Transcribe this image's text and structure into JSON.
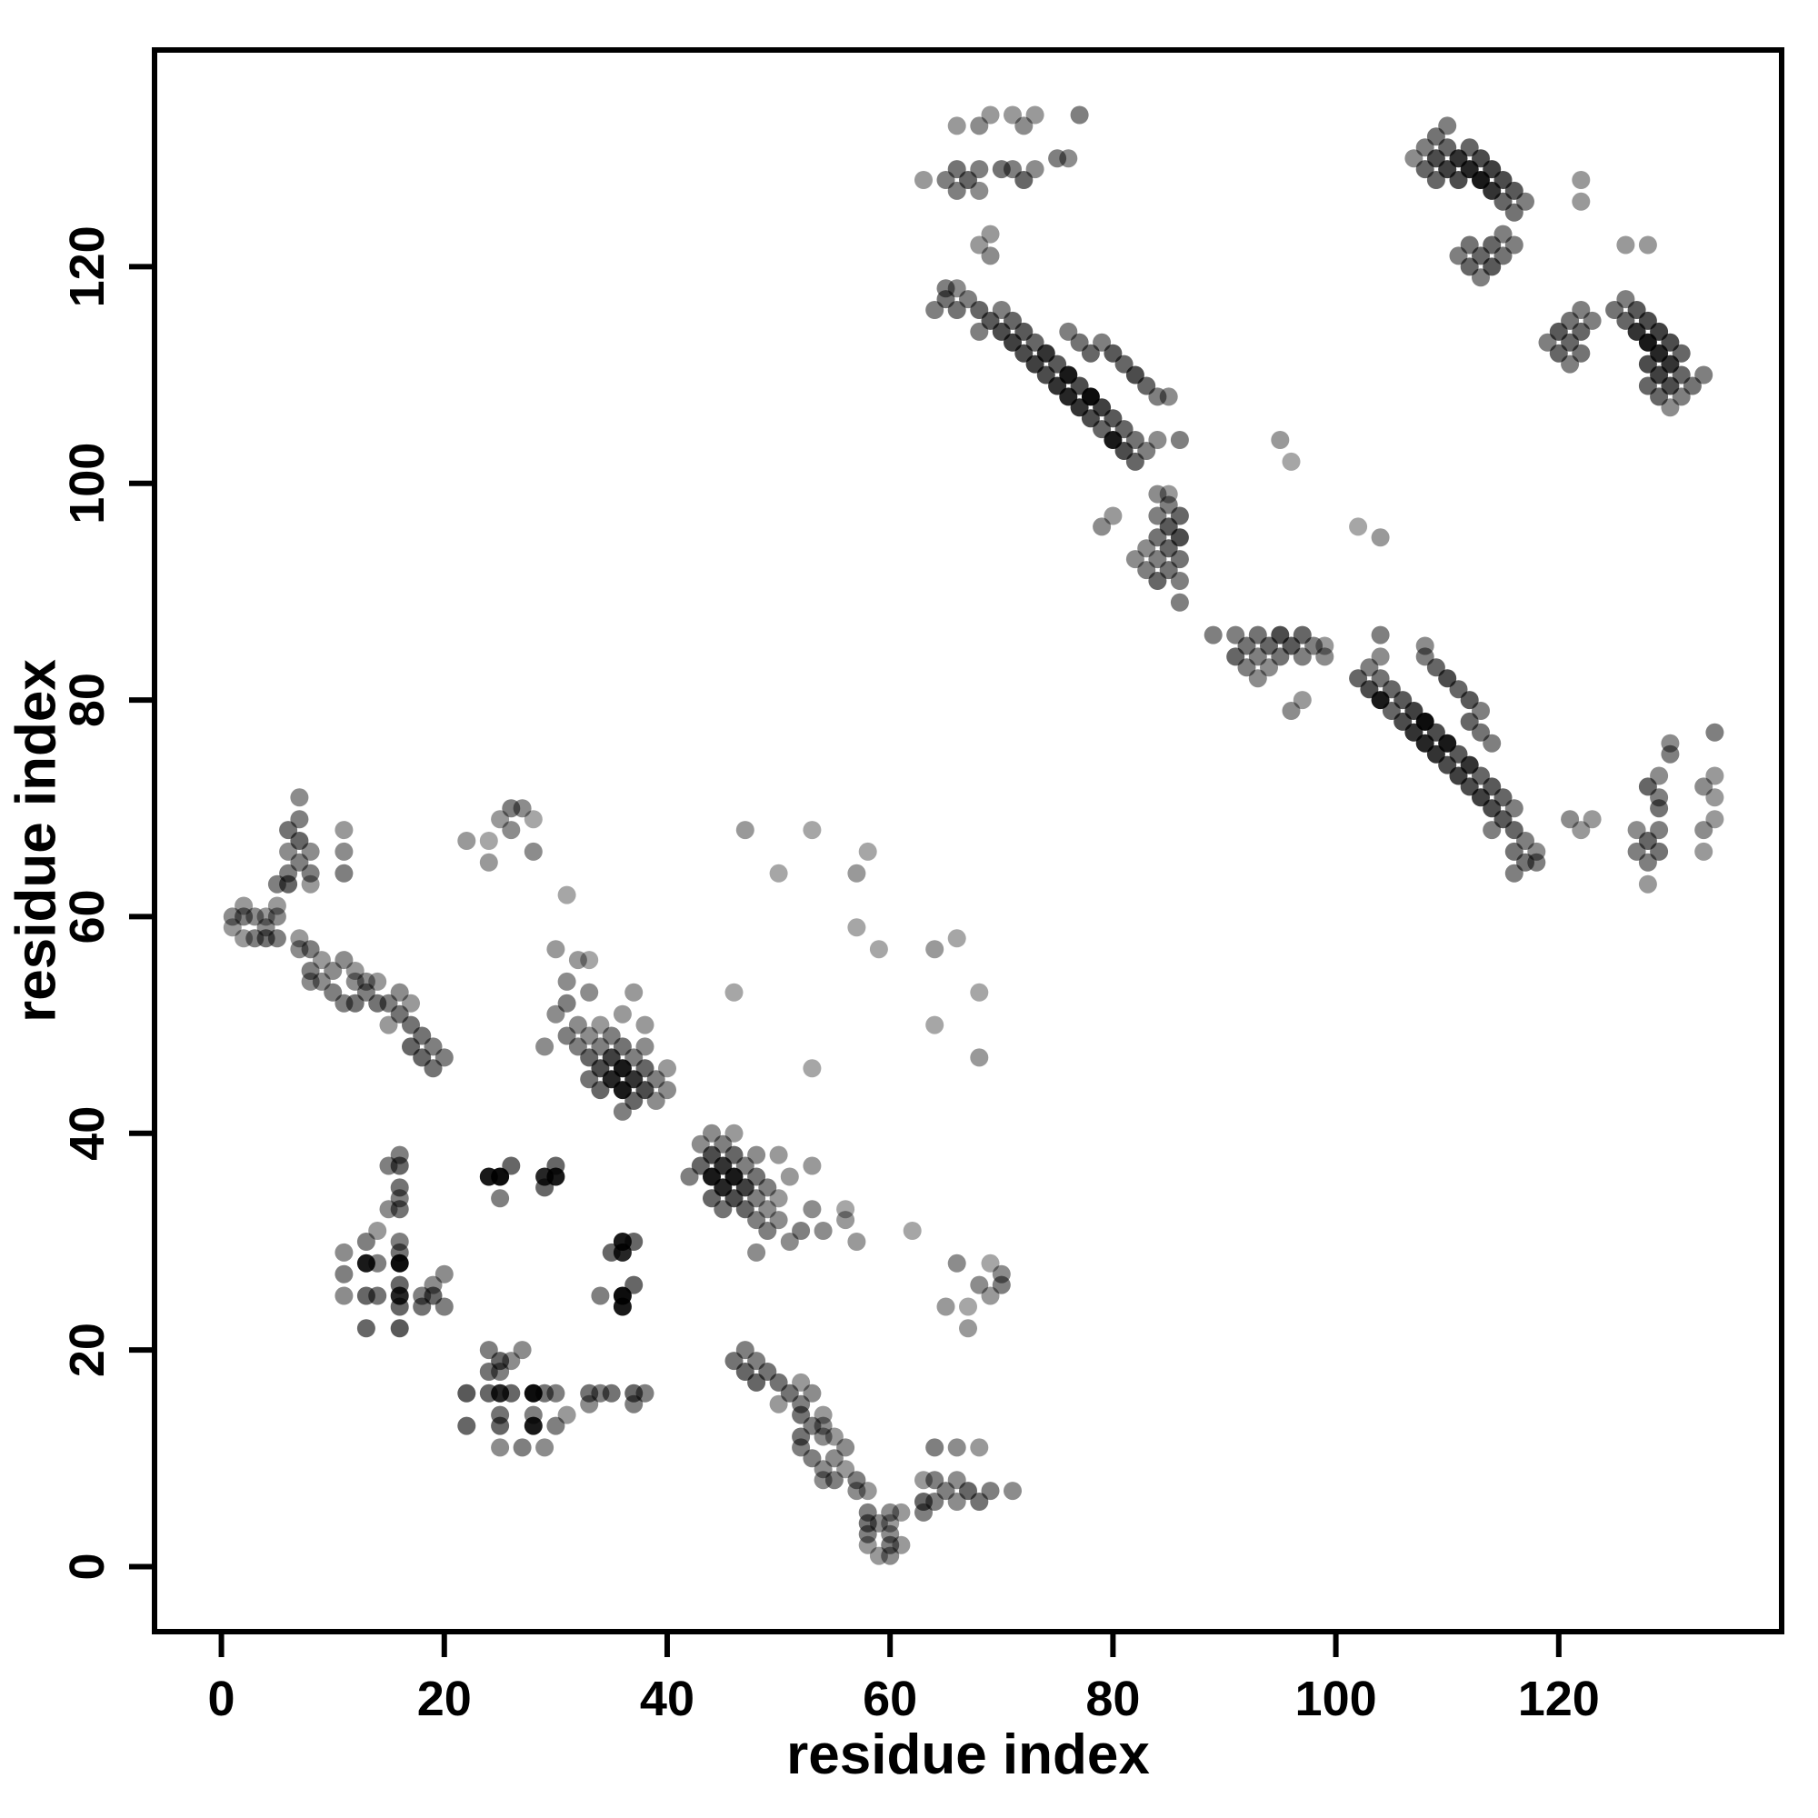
{
  "figure": {
    "background_color": "#ffffff",
    "border_color": "#000000",
    "description": "Protein residue-residue contact map scatter plot, grayscale dots"
  },
  "chart_data": {
    "type": "scatter",
    "title": "",
    "xlabel": "residue index",
    "ylabel": "residue index",
    "xlim": [
      -6,
      140
    ],
    "ylim": [
      -6,
      140
    ],
    "xticks": [
      0,
      20,
      40,
      60,
      80,
      100,
      120
    ],
    "yticks": [
      0,
      20,
      40,
      60,
      80,
      100,
      120
    ],
    "grid": false,
    "legend": null,
    "marker": {
      "shape": "circle",
      "radius_px": 10,
      "color": "#000000",
      "alpha_mode": "per-point"
    },
    "symmetric": true,
    "points_format": "[residue_i, residue_j, darkness 0-1]; map is symmetric so each pair is also drawn mirrored (j,i)",
    "points": [
      [
        1,
        59,
        0.4
      ],
      [
        1,
        60,
        0.45
      ],
      [
        2,
        58,
        0.4
      ],
      [
        2,
        60,
        0.5
      ],
      [
        2,
        61,
        0.4
      ],
      [
        3,
        58,
        0.5
      ],
      [
        3,
        60,
        0.45
      ],
      [
        4,
        58,
        0.55
      ],
      [
        4,
        59,
        0.45
      ],
      [
        4,
        60,
        0.4
      ],
      [
        5,
        58,
        0.5
      ],
      [
        5,
        60,
        0.45
      ],
      [
        5,
        61,
        0.4
      ],
      [
        5,
        63,
        0.5
      ],
      [
        6,
        63,
        0.6
      ],
      [
        6,
        64,
        0.5
      ],
      [
        6,
        66,
        0.45
      ],
      [
        6,
        68,
        0.55
      ],
      [
        7,
        65,
        0.5
      ],
      [
        7,
        67,
        0.6
      ],
      [
        7,
        69,
        0.5
      ],
      [
        7,
        71,
        0.45
      ],
      [
        8,
        63,
        0.4
      ],
      [
        8,
        64,
        0.5
      ],
      [
        8,
        66,
        0.45
      ],
      [
        11,
        64,
        0.5
      ],
      [
        11,
        66,
        0.45
      ],
      [
        11,
        68,
        0.4
      ],
      [
        7,
        57,
        0.45
      ],
      [
        7,
        58,
        0.4
      ],
      [
        8,
        54,
        0.45
      ],
      [
        8,
        55,
        0.5
      ],
      [
        8,
        57,
        0.5
      ],
      [
        9,
        54,
        0.45
      ],
      [
        9,
        56,
        0.4
      ],
      [
        10,
        53,
        0.5
      ],
      [
        10,
        55,
        0.45
      ],
      [
        11,
        52,
        0.5
      ],
      [
        11,
        56,
        0.45
      ],
      [
        12,
        52,
        0.55
      ],
      [
        12,
        54,
        0.45
      ],
      [
        12,
        55,
        0.4
      ],
      [
        13,
        53,
        0.5
      ],
      [
        13,
        54,
        0.45
      ],
      [
        14,
        52,
        0.55
      ],
      [
        14,
        54,
        0.4
      ],
      [
        15,
        50,
        0.4
      ],
      [
        15,
        52,
        0.5
      ],
      [
        16,
        51,
        0.55
      ],
      [
        16,
        53,
        0.45
      ],
      [
        17,
        48,
        0.6
      ],
      [
        17,
        50,
        0.55
      ],
      [
        17,
        52,
        0.4
      ],
      [
        18,
        47,
        0.6
      ],
      [
        18,
        49,
        0.55
      ],
      [
        19,
        46,
        0.55
      ],
      [
        19,
        48,
        0.5
      ],
      [
        20,
        47,
        0.5
      ],
      [
        11,
        25,
        0.45
      ],
      [
        11,
        27,
        0.5
      ],
      [
        11,
        29,
        0.45
      ],
      [
        13,
        22,
        0.6
      ],
      [
        13,
        25,
        0.6
      ],
      [
        13,
        28,
        0.9
      ],
      [
        13,
        30,
        0.5
      ],
      [
        14,
        25,
        0.55
      ],
      [
        14,
        28,
        0.5
      ],
      [
        14,
        31,
        0.4
      ],
      [
        16,
        22,
        0.65
      ],
      [
        16,
        24,
        0.6
      ],
      [
        16,
        25,
        0.85
      ],
      [
        16,
        26,
        0.6
      ],
      [
        16,
        28,
        0.95
      ],
      [
        16,
        29,
        0.55
      ],
      [
        16,
        30,
        0.5
      ],
      [
        18,
        24,
        0.55
      ],
      [
        18,
        25,
        0.5
      ],
      [
        19,
        25,
        0.6
      ],
      [
        19,
        26,
        0.45
      ],
      [
        20,
        24,
        0.5
      ],
      [
        20,
        27,
        0.45
      ],
      [
        15,
        33,
        0.45
      ],
      [
        15,
        37,
        0.5
      ],
      [
        16,
        33,
        0.55
      ],
      [
        16,
        34,
        0.5
      ],
      [
        16,
        35,
        0.55
      ],
      [
        16,
        37,
        0.6
      ],
      [
        16,
        38,
        0.5
      ],
      [
        24,
        36,
        0.9
      ],
      [
        25,
        34,
        0.5
      ],
      [
        25,
        36,
        0.95
      ],
      [
        26,
        37,
        0.6
      ],
      [
        29,
        35,
        0.6
      ],
      [
        29,
        36,
        0.85
      ],
      [
        30,
        36,
        0.9
      ],
      [
        30,
        37,
        0.6
      ],
      [
        30,
        51,
        0.45
      ],
      [
        31,
        49,
        0.5
      ],
      [
        31,
        52,
        0.5
      ],
      [
        31,
        54,
        0.45
      ],
      [
        32,
        48,
        0.5
      ],
      [
        32,
        50,
        0.45
      ],
      [
        32,
        56,
        0.4
      ],
      [
        33,
        45,
        0.55
      ],
      [
        33,
        47,
        0.6
      ],
      [
        33,
        49,
        0.45
      ],
      [
        33,
        53,
        0.45
      ],
      [
        33,
        56,
        0.35
      ],
      [
        34,
        44,
        0.6
      ],
      [
        34,
        46,
        0.7
      ],
      [
        34,
        48,
        0.5
      ],
      [
        34,
        50,
        0.4
      ],
      [
        35,
        45,
        0.85
      ],
      [
        35,
        47,
        0.75
      ],
      [
        35,
        49,
        0.5
      ],
      [
        36,
        42,
        0.5
      ],
      [
        36,
        44,
        0.9
      ],
      [
        36,
        46,
        0.9
      ],
      [
        36,
        48,
        0.55
      ],
      [
        36,
        51,
        0.4
      ],
      [
        37,
        43,
        0.6
      ],
      [
        37,
        45,
        0.8
      ],
      [
        37,
        47,
        0.5
      ],
      [
        37,
        53,
        0.4
      ],
      [
        38,
        44,
        0.7
      ],
      [
        38,
        46,
        0.6
      ],
      [
        38,
        48,
        0.45
      ],
      [
        38,
        50,
        0.4
      ],
      [
        39,
        43,
        0.45
      ],
      [
        39,
        45,
        0.5
      ],
      [
        40,
        44,
        0.45
      ],
      [
        40,
        46,
        0.4
      ],
      [
        22,
        67,
        0.4
      ],
      [
        24,
        65,
        0.4
      ],
      [
        24,
        67,
        0.35
      ],
      [
        25,
        69,
        0.4
      ],
      [
        26,
        68,
        0.45
      ],
      [
        26,
        70,
        0.5
      ],
      [
        27,
        70,
        0.45
      ],
      [
        28,
        66,
        0.45
      ],
      [
        28,
        69,
        0.35
      ],
      [
        29,
        48,
        0.45
      ],
      [
        30,
        57,
        0.4
      ],
      [
        31,
        62,
        0.35
      ],
      [
        46,
        53,
        0.35
      ],
      [
        47,
        68,
        0.4
      ],
      [
        50,
        64,
        0.35
      ],
      [
        53,
        68,
        0.35
      ],
      [
        57,
        59,
        0.35
      ],
      [
        57,
        64,
        0.4
      ],
      [
        58,
        66,
        0.35
      ],
      [
        63,
        128,
        0.4
      ],
      [
        65,
        128,
        0.5
      ],
      [
        66,
        127,
        0.5
      ],
      [
        66,
        129,
        0.55
      ],
      [
        67,
        128,
        0.6
      ],
      [
        68,
        127,
        0.45
      ],
      [
        68,
        129,
        0.5
      ],
      [
        70,
        129,
        0.55
      ],
      [
        71,
        129,
        0.5
      ],
      [
        72,
        128,
        0.6
      ],
      [
        73,
        129,
        0.45
      ],
      [
        75,
        130,
        0.5
      ],
      [
        76,
        130,
        0.45
      ],
      [
        64,
        116,
        0.5
      ],
      [
        65,
        117,
        0.55
      ],
      [
        65,
        118,
        0.5
      ],
      [
        66,
        116,
        0.55
      ],
      [
        66,
        118,
        0.45
      ],
      [
        67,
        117,
        0.5
      ],
      [
        68,
        114,
        0.5
      ],
      [
        68,
        116,
        0.6
      ],
      [
        69,
        115,
        0.65
      ],
      [
        70,
        114,
        0.7
      ],
      [
        70,
        116,
        0.5
      ],
      [
        71,
        113,
        0.75
      ],
      [
        71,
        115,
        0.6
      ],
      [
        72,
        112,
        0.7
      ],
      [
        72,
        114,
        0.65
      ],
      [
        73,
        111,
        0.75
      ],
      [
        73,
        113,
        0.6
      ],
      [
        74,
        110,
        0.7
      ],
      [
        74,
        112,
        0.8
      ],
      [
        75,
        109,
        0.8
      ],
      [
        75,
        111,
        0.65
      ],
      [
        76,
        108,
        0.85
      ],
      [
        76,
        110,
        0.9
      ],
      [
        76,
        114,
        0.5
      ],
      [
        77,
        107,
        0.8
      ],
      [
        77,
        109,
        0.7
      ],
      [
        77,
        113,
        0.55
      ],
      [
        78,
        106,
        0.7
      ],
      [
        78,
        108,
        0.95
      ],
      [
        78,
        112,
        0.6
      ],
      [
        79,
        105,
        0.6
      ],
      [
        79,
        107,
        0.75
      ],
      [
        79,
        113,
        0.5
      ],
      [
        80,
        104,
        0.9
      ],
      [
        80,
        106,
        0.65
      ],
      [
        80,
        112,
        0.65
      ],
      [
        81,
        103,
        0.7
      ],
      [
        81,
        105,
        0.6
      ],
      [
        81,
        111,
        0.6
      ],
      [
        82,
        102,
        0.6
      ],
      [
        82,
        104,
        0.55
      ],
      [
        82,
        110,
        0.7
      ],
      [
        83,
        103,
        0.5
      ],
      [
        83,
        109,
        0.6
      ],
      [
        84,
        104,
        0.45
      ],
      [
        84,
        108,
        0.5
      ],
      [
        85,
        108,
        0.45
      ],
      [
        86,
        104,
        0.5
      ],
      [
        79,
        96,
        0.45
      ],
      [
        80,
        97,
        0.4
      ],
      [
        82,
        93,
        0.45
      ],
      [
        83,
        92,
        0.5
      ],
      [
        83,
        94,
        0.45
      ],
      [
        84,
        91,
        0.6
      ],
      [
        84,
        93,
        0.5
      ],
      [
        84,
        95,
        0.55
      ],
      [
        84,
        97,
        0.5
      ],
      [
        84,
        99,
        0.45
      ],
      [
        85,
        92,
        0.55
      ],
      [
        85,
        94,
        0.6
      ],
      [
        85,
        96,
        0.65
      ],
      [
        85,
        98,
        0.5
      ],
      [
        85,
        99,
        0.4
      ],
      [
        86,
        89,
        0.5
      ],
      [
        86,
        91,
        0.5
      ],
      [
        86,
        93,
        0.55
      ],
      [
        86,
        95,
        0.7
      ],
      [
        86,
        97,
        0.6
      ],
      [
        68,
        122,
        0.4
      ],
      [
        69,
        121,
        0.45
      ],
      [
        69,
        123,
        0.4
      ],
      [
        95,
        104,
        0.4
      ],
      [
        96,
        102,
        0.35
      ],
      [
        111,
        121,
        0.5
      ],
      [
        112,
        120,
        0.6
      ],
      [
        112,
        122,
        0.55
      ],
      [
        113,
        119,
        0.5
      ],
      [
        113,
        121,
        0.6
      ],
      [
        114,
        120,
        0.65
      ],
      [
        114,
        122,
        0.6
      ],
      [
        115,
        121,
        0.55
      ],
      [
        115,
        123,
        0.5
      ],
      [
        116,
        122,
        0.5
      ],
      [
        107,
        130,
        0.45
      ],
      [
        108,
        129,
        0.6
      ],
      [
        108,
        131,
        0.5
      ],
      [
        109,
        128,
        0.6
      ],
      [
        109,
        130,
        0.7
      ],
      [
        109,
        132,
        0.55
      ],
      [
        110,
        129,
        0.75
      ],
      [
        110,
        131,
        0.6
      ],
      [
        110,
        133,
        0.5
      ],
      [
        111,
        128,
        0.7
      ],
      [
        111,
        130,
        0.8
      ],
      [
        112,
        129,
        0.85
      ],
      [
        112,
        131,
        0.6
      ],
      [
        113,
        128,
        0.9
      ],
      [
        113,
        130,
        0.7
      ],
      [
        114,
        127,
        0.8
      ],
      [
        114,
        129,
        0.75
      ],
      [
        115,
        126,
        0.6
      ],
      [
        115,
        128,
        0.7
      ],
      [
        116,
        125,
        0.55
      ],
      [
        116,
        127,
        0.65
      ],
      [
        117,
        126,
        0.5
      ],
      [
        122,
        126,
        0.4
      ],
      [
        122,
        128,
        0.4
      ],
      [
        66,
        133,
        0.4
      ],
      [
        68,
        133,
        0.45
      ],
      [
        69,
        134,
        0.4
      ],
      [
        71,
        134,
        0.4
      ],
      [
        72,
        133,
        0.45
      ],
      [
        73,
        134,
        0.4
      ],
      [
        77,
        134,
        0.5
      ]
    ]
  }
}
